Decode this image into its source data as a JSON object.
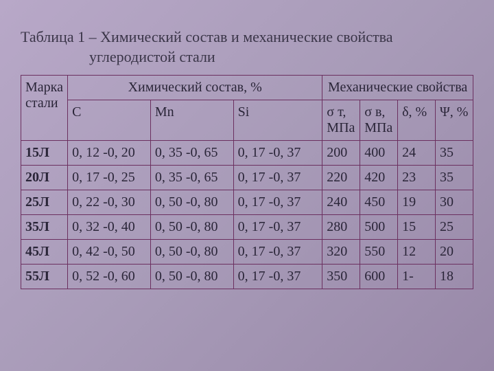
{
  "caption": {
    "line1": "Таблица 1 – Химический состав и механические свойства",
    "line2": "углеродистой стали"
  },
  "headers": {
    "mark": "Марка стали",
    "chem": "Химический состав, %",
    "mech": "Механические свойства",
    "C": "C",
    "Mn": "Mn",
    "Si": "Si",
    "sigma_t": "σ т, МПа",
    "sigma_v": "σ в, МПа",
    "delta": "δ, %",
    "psi": "Ψ, %"
  },
  "rows": [
    {
      "mark": "15Л",
      "C": "0, 12 -0, 20",
      "Mn": "0, 35 -0, 65",
      "Si": "0, 17 -0, 37",
      "st": "200",
      "sv": "400",
      "d": "24",
      "p": "35"
    },
    {
      "mark": "20Л",
      "C": "0, 17 -0, 25",
      "Mn": "0, 35 -0, 65",
      "Si": "0, 17 -0, 37",
      "st": "220",
      "sv": "420",
      "d": "23",
      "p": "35"
    },
    {
      "mark": "25Л",
      "C": "0, 22 -0, 30",
      "Mn": "0, 50 -0, 80",
      "Si": "0, 17 -0, 37",
      "st": "240",
      "sv": "450",
      "d": "19",
      "p": "30"
    },
    {
      "mark": "35Л",
      "C": "0, 32 -0, 40",
      "Mn": "0, 50 -0, 80",
      "Si": "0, 17 -0, 37",
      "st": "280",
      "sv": "500",
      "d": "15",
      "p": "25"
    },
    {
      "mark": "45Л",
      "C": "0, 42 -0, 50",
      "Mn": "0, 50 -0, 80",
      "Si": "0, 17 -0, 37",
      "st": "320",
      "sv": "550",
      "d": "12",
      "p": "20"
    },
    {
      "mark": "55Л",
      "C": "0, 52 -0, 60",
      "Mn": "0, 50 -0, 80",
      "Si": "0, 17 -0, 37",
      "st": "350",
      "sv": "600",
      "d": "1-",
      "p": "18"
    }
  ],
  "style": {
    "border_color": "#6b2f5f",
    "text_color": "#2a2538",
    "bg_gradient_start": "#b8a8c8",
    "bg_gradient_end": "#9888a8",
    "font_family": "Times New Roman",
    "caption_fontsize": 22,
    "cell_fontsize": 20
  }
}
